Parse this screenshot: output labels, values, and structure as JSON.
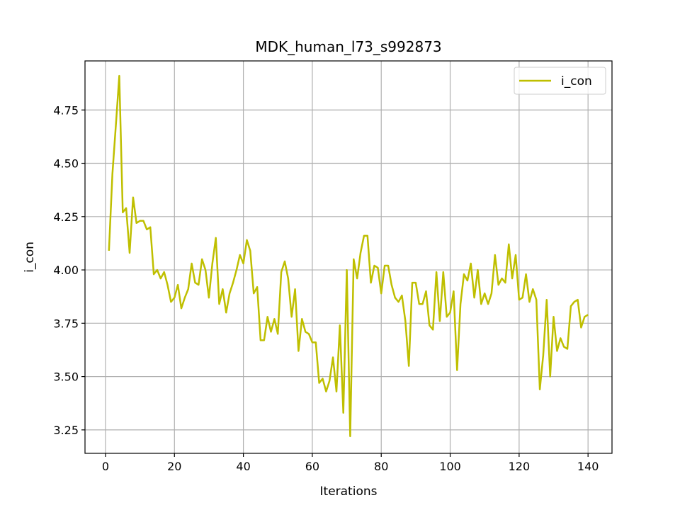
{
  "chart_data": {
    "type": "line",
    "title": "MDK_human_l73_s992873",
    "xlabel": "Iterations",
    "ylabel": "i_con",
    "xlim": [
      -5.95,
      146.95
    ],
    "ylim": [
      3.14,
      4.98
    ],
    "xticks": [
      0,
      20,
      40,
      60,
      80,
      100,
      120,
      140
    ],
    "yticks": [
      3.25,
      3.5,
      3.75,
      4.0,
      4.25,
      4.5,
      4.75
    ],
    "ytick_labels": [
      "3.25",
      "3.50",
      "3.75",
      "4.00",
      "4.25",
      "4.50",
      "4.75"
    ],
    "grid": true,
    "legend_position": "top-right",
    "series": [
      {
        "name": "i_con",
        "color": "#bfbf00",
        "x": [
          1,
          2,
          3,
          4,
          5,
          6,
          7,
          8,
          9,
          10,
          11,
          12,
          13,
          14,
          15,
          16,
          17,
          18,
          19,
          20,
          21,
          22,
          23,
          24,
          25,
          26,
          27,
          28,
          29,
          30,
          31,
          32,
          33,
          34,
          35,
          36,
          37,
          38,
          39,
          40,
          41,
          42,
          43,
          44,
          45,
          46,
          47,
          48,
          49,
          50,
          51,
          52,
          53,
          54,
          55,
          56,
          57,
          58,
          59,
          60,
          61,
          62,
          63,
          64,
          65,
          66,
          67,
          68,
          69,
          70,
          71,
          72,
          73,
          74,
          75,
          76,
          77,
          78,
          79,
          80,
          81,
          82,
          83,
          84,
          85,
          86,
          87,
          88,
          89,
          90,
          91,
          92,
          93,
          94,
          95,
          96,
          97,
          98,
          99,
          100,
          101,
          102,
          103,
          104,
          105,
          106,
          107,
          108,
          109,
          110,
          111,
          112,
          113,
          114,
          115,
          116,
          117,
          118,
          119,
          120,
          121,
          122,
          123,
          124,
          125,
          126,
          127,
          128,
          129,
          130,
          131,
          132,
          133,
          134,
          135,
          136,
          137,
          138,
          139,
          140
        ],
        "values": [
          4.09,
          4.45,
          4.68,
          4.91,
          4.27,
          4.29,
          4.08,
          4.34,
          4.22,
          4.23,
          4.23,
          4.19,
          4.2,
          3.98,
          4.0,
          3.96,
          3.99,
          3.93,
          3.85,
          3.87,
          3.93,
          3.82,
          3.87,
          3.91,
          4.03,
          3.94,
          3.93,
          4.05,
          4.0,
          3.87,
          4.03,
          4.15,
          3.84,
          3.91,
          3.8,
          3.89,
          3.94,
          4.0,
          4.07,
          4.03,
          4.14,
          4.09,
          3.89,
          3.92,
          3.67,
          3.67,
          3.78,
          3.71,
          3.77,
          3.7,
          3.99,
          4.04,
          3.96,
          3.78,
          3.91,
          3.62,
          3.77,
          3.71,
          3.7,
          3.66,
          3.66,
          3.47,
          3.49,
          3.43,
          3.48,
          3.59,
          3.43,
          3.74,
          3.33,
          4.0,
          3.22,
          4.05,
          3.96,
          4.08,
          4.16,
          4.16,
          3.94,
          4.02,
          4.01,
          3.89,
          4.02,
          4.02,
          3.93,
          3.87,
          3.85,
          3.88,
          3.76,
          3.55,
          3.94,
          3.94,
          3.84,
          3.84,
          3.9,
          3.74,
          3.72,
          3.99,
          3.76,
          3.99,
          3.78,
          3.8,
          3.9,
          3.53,
          3.84,
          3.98,
          3.95,
          4.03,
          3.87,
          4.0,
          3.84,
          3.89,
          3.84,
          3.89,
          4.07,
          3.93,
          3.96,
          3.94,
          4.12,
          3.96,
          4.07,
          3.86,
          3.87,
          3.98,
          3.85,
          3.91,
          3.86,
          3.44,
          3.6,
          3.86,
          3.5,
          3.78,
          3.62,
          3.68,
          3.64,
          3.63,
          3.83,
          3.85,
          3.86,
          3.73,
          3.78,
          3.79
        ]
      }
    ]
  }
}
